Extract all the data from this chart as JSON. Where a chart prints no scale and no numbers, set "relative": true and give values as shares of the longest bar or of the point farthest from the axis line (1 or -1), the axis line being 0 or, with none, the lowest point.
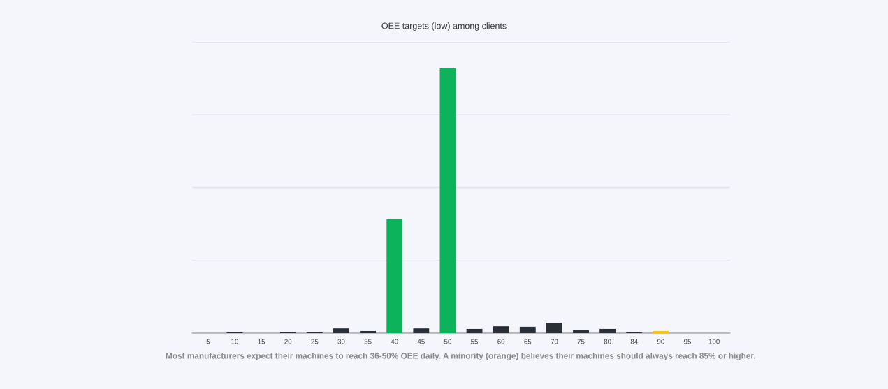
{
  "chart_data": {
    "type": "bar",
    "title": "OEE targets (low) among clients",
    "relative": true,
    "categories": [
      "5",
      "10",
      "15",
      "20",
      "25",
      "30",
      "35",
      "40",
      "45",
      "50",
      "55",
      "60",
      "65",
      "70",
      "75",
      "80",
      "84",
      "90",
      "95",
      "100"
    ],
    "values": [
      0,
      0.003,
      0,
      0.005,
      0.003,
      0.018,
      0.008,
      0.43,
      0.018,
      1,
      0.016,
      0.026,
      0.024,
      0.039,
      0.011,
      0.016,
      0.003,
      0.008,
      0,
      0
    ],
    "colors": [
      "#2b2f38",
      "#2b2f38",
      "#2b2f38",
      "#2b2f38",
      "#2b2f38",
      "#2b2f38",
      "#2b2f38",
      "#0db35a",
      "#2b2f38",
      "#0db35a",
      "#2b2f38",
      "#2b2f38",
      "#2b2f38",
      "#2b2f38",
      "#2b2f38",
      "#2b2f38",
      "#2b2f38",
      "#f2c318",
      "#2b2f38",
      "#2b2f38"
    ],
    "grid": "y",
    "annotations": [
      "Most manufacturers expect their machines to reach 36-50% OEE daily. A minority (orange) believes their machines should always reach 85% or higher."
    ]
  }
}
